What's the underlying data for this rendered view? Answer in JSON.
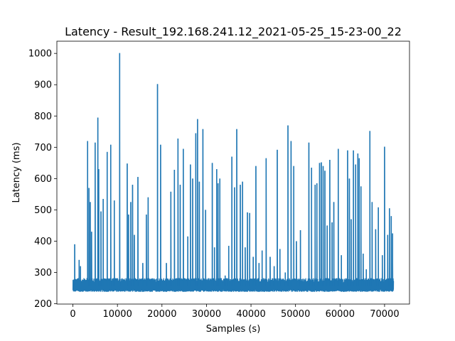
{
  "chart_data": {
    "type": "line",
    "title": "Latency - Result_192.168.241.12_2021-05-25_15-23-00_22",
    "xlabel": "Samples  (s)",
    "ylabel": "Latency (ms)",
    "xlim": [
      -3600,
      75600
    ],
    "ylim": [
      199,
      1039
    ],
    "xticks": [
      0,
      10000,
      20000,
      30000,
      40000,
      50000,
      60000,
      70000
    ],
    "yticks": [
      200,
      300,
      400,
      500,
      600,
      700,
      800,
      900,
      1000
    ],
    "grid": false,
    "series_color": "#1f77b4",
    "series": [
      {
        "baseline": {
          "x_start": 0,
          "x_end": 72000,
          "low": 238,
          "high": 282
        },
        "spikes": [
          {
            "x": 400,
            "y": 390
          },
          {
            "x": 1400,
            "y": 340
          },
          {
            "x": 1700,
            "y": 320
          },
          {
            "x": 3300,
            "y": 720
          },
          {
            "x": 3600,
            "y": 570
          },
          {
            "x": 3900,
            "y": 525
          },
          {
            "x": 4200,
            "y": 430
          },
          {
            "x": 5000,
            "y": 715
          },
          {
            "x": 5600,
            "y": 795
          },
          {
            "x": 5800,
            "y": 630
          },
          {
            "x": 6300,
            "y": 495
          },
          {
            "x": 6800,
            "y": 535
          },
          {
            "x": 7700,
            "y": 685
          },
          {
            "x": 8500,
            "y": 708
          },
          {
            "x": 9300,
            "y": 530
          },
          {
            "x": 10500,
            "y": 1001
          },
          {
            "x": 12200,
            "y": 648
          },
          {
            "x": 12500,
            "y": 485
          },
          {
            "x": 13000,
            "y": 525
          },
          {
            "x": 13400,
            "y": 580
          },
          {
            "x": 13800,
            "y": 420
          },
          {
            "x": 14600,
            "y": 605
          },
          {
            "x": 15700,
            "y": 330
          },
          {
            "x": 16500,
            "y": 485
          },
          {
            "x": 16900,
            "y": 540
          },
          {
            "x": 19000,
            "y": 902
          },
          {
            "x": 19700,
            "y": 708
          },
          {
            "x": 21000,
            "y": 330
          },
          {
            "x": 22000,
            "y": 558
          },
          {
            "x": 22800,
            "y": 628
          },
          {
            "x": 23600,
            "y": 728
          },
          {
            "x": 24100,
            "y": 580
          },
          {
            "x": 24800,
            "y": 695
          },
          {
            "x": 25800,
            "y": 415
          },
          {
            "x": 26400,
            "y": 645
          },
          {
            "x": 26900,
            "y": 600
          },
          {
            "x": 27600,
            "y": 745
          },
          {
            "x": 28000,
            "y": 790
          },
          {
            "x": 28400,
            "y": 590
          },
          {
            "x": 29200,
            "y": 758
          },
          {
            "x": 29800,
            "y": 500
          },
          {
            "x": 31300,
            "y": 650
          },
          {
            "x": 31800,
            "y": 380
          },
          {
            "x": 32300,
            "y": 630
          },
          {
            "x": 32600,
            "y": 585
          },
          {
            "x": 33000,
            "y": 600
          },
          {
            "x": 34200,
            "y": 290
          },
          {
            "x": 35000,
            "y": 385
          },
          {
            "x": 35700,
            "y": 670
          },
          {
            "x": 36300,
            "y": 572
          },
          {
            "x": 36800,
            "y": 758
          },
          {
            "x": 37600,
            "y": 580
          },
          {
            "x": 38100,
            "y": 590
          },
          {
            "x": 38700,
            "y": 380
          },
          {
            "x": 39200,
            "y": 492
          },
          {
            "x": 39700,
            "y": 490
          },
          {
            "x": 40500,
            "y": 350
          },
          {
            "x": 41100,
            "y": 640
          },
          {
            "x": 41800,
            "y": 330
          },
          {
            "x": 42500,
            "y": 370
          },
          {
            "x": 43400,
            "y": 665
          },
          {
            "x": 44300,
            "y": 350
          },
          {
            "x": 45200,
            "y": 320
          },
          {
            "x": 45900,
            "y": 692
          },
          {
            "x": 46500,
            "y": 375
          },
          {
            "x": 47700,
            "y": 300
          },
          {
            "x": 48300,
            "y": 770
          },
          {
            "x": 49000,
            "y": 720
          },
          {
            "x": 49600,
            "y": 640
          },
          {
            "x": 50200,
            "y": 400
          },
          {
            "x": 51100,
            "y": 435
          },
          {
            "x": 53000,
            "y": 715
          },
          {
            "x": 53600,
            "y": 635
          },
          {
            "x": 54400,
            "y": 580
          },
          {
            "x": 54800,
            "y": 585
          },
          {
            "x": 55400,
            "y": 650
          },
          {
            "x": 55800,
            "y": 652
          },
          {
            "x": 56200,
            "y": 640
          },
          {
            "x": 56600,
            "y": 625
          },
          {
            "x": 57100,
            "y": 450
          },
          {
            "x": 57700,
            "y": 660
          },
          {
            "x": 58200,
            "y": 460
          },
          {
            "x": 58600,
            "y": 525
          },
          {
            "x": 59600,
            "y": 695
          },
          {
            "x": 60300,
            "y": 355
          },
          {
            "x": 61700,
            "y": 690
          },
          {
            "x": 62100,
            "y": 600
          },
          {
            "x": 62500,
            "y": 470
          },
          {
            "x": 63000,
            "y": 690
          },
          {
            "x": 63500,
            "y": 645
          },
          {
            "x": 64000,
            "y": 680
          },
          {
            "x": 64300,
            "y": 665
          },
          {
            "x": 64700,
            "y": 575
          },
          {
            "x": 65200,
            "y": 360
          },
          {
            "x": 65900,
            "y": 310
          },
          {
            "x": 66700,
            "y": 752
          },
          {
            "x": 67200,
            "y": 525
          },
          {
            "x": 68000,
            "y": 438
          },
          {
            "x": 68600,
            "y": 508
          },
          {
            "x": 69500,
            "y": 355
          },
          {
            "x": 70000,
            "y": 702
          },
          {
            "x": 70700,
            "y": 420
          },
          {
            "x": 71100,
            "y": 505
          },
          {
            "x": 71500,
            "y": 480
          },
          {
            "x": 71800,
            "y": 425
          }
        ]
      }
    ]
  }
}
